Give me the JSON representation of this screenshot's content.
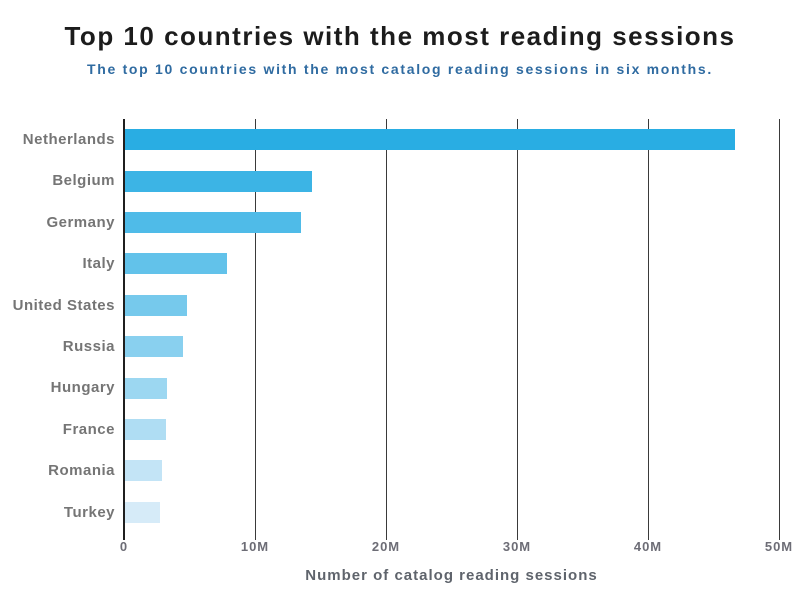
{
  "chart_data": {
    "type": "bar",
    "orientation": "horizontal",
    "title": "Top 10 countries with the most reading sessions",
    "subtitle": "The top 10 countries with the most catalog reading sessions in six months.",
    "xlabel": "Number of catalog reading sessions",
    "categories": [
      "Netherlands",
      "Belgium",
      "Germany",
      "Italy",
      "United States",
      "Russia",
      "Hungary",
      "France",
      "Romania",
      "Turkey"
    ],
    "values_millions": [
      46.6,
      14.3,
      13.4,
      7.8,
      4.7,
      4.4,
      3.2,
      3.1,
      2.8,
      2.7
    ],
    "unit": "M",
    "xlim": [
      0,
      50
    ],
    "xticks": {
      "values": [
        0,
        10,
        20,
        30,
        40,
        50
      ],
      "labels": [
        "0",
        "10M",
        "20M",
        "30M",
        "40M",
        "50M"
      ]
    },
    "grid": "vertical-lines-on",
    "legend": "none",
    "bar_colors": [
      "#29ade3",
      "#3cb4e5",
      "#4fbbe8",
      "#62c2ea",
      "#76c9ec",
      "#89d0ef",
      "#9cd7f1",
      "#afddf3",
      "#c3e4f6",
      "#d6ebf8"
    ],
    "colors": {
      "background": "#ffffff",
      "title_text": "#1c1c1c",
      "subtitle_text": "#2f6ba1",
      "category_label_text": "#757575",
      "tick_label_text": "#6d6d76",
      "axis_title_text": "#5f646c",
      "gridline": "#3a3a3a"
    }
  }
}
